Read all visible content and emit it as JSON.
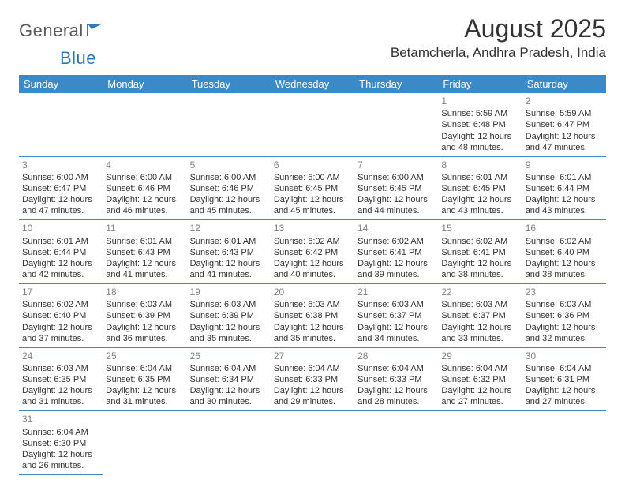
{
  "brand": {
    "part1": "General",
    "part2": "Blue"
  },
  "header": {
    "title": "August 2025",
    "location": "Betamcherla, Andhra Pradesh, India"
  },
  "style": {
    "header_bg": "#3b89c7",
    "header_text": "#ffffff",
    "cell_border": "#3b89c7",
    "daynum_color": "#808080",
    "body_text": "#333333",
    "logo_gray": "#5a5a5a",
    "logo_blue": "#2f79b9",
    "background": "#ffffff"
  },
  "weekdays": [
    "Sunday",
    "Monday",
    "Tuesday",
    "Wednesday",
    "Thursday",
    "Friday",
    "Saturday"
  ],
  "weeks": [
    [
      null,
      null,
      null,
      null,
      null,
      {
        "n": "1",
        "sr": "Sunrise: 5:59 AM",
        "ss": "Sunset: 6:48 PM",
        "d1": "Daylight: 12 hours",
        "d2": "and 48 minutes."
      },
      {
        "n": "2",
        "sr": "Sunrise: 5:59 AM",
        "ss": "Sunset: 6:47 PM",
        "d1": "Daylight: 12 hours",
        "d2": "and 47 minutes."
      }
    ],
    [
      {
        "n": "3",
        "sr": "Sunrise: 6:00 AM",
        "ss": "Sunset: 6:47 PM",
        "d1": "Daylight: 12 hours",
        "d2": "and 47 minutes."
      },
      {
        "n": "4",
        "sr": "Sunrise: 6:00 AM",
        "ss": "Sunset: 6:46 PM",
        "d1": "Daylight: 12 hours",
        "d2": "and 46 minutes."
      },
      {
        "n": "5",
        "sr": "Sunrise: 6:00 AM",
        "ss": "Sunset: 6:46 PM",
        "d1": "Daylight: 12 hours",
        "d2": "and 45 minutes."
      },
      {
        "n": "6",
        "sr": "Sunrise: 6:00 AM",
        "ss": "Sunset: 6:45 PM",
        "d1": "Daylight: 12 hours",
        "d2": "and 45 minutes."
      },
      {
        "n": "7",
        "sr": "Sunrise: 6:00 AM",
        "ss": "Sunset: 6:45 PM",
        "d1": "Daylight: 12 hours",
        "d2": "and 44 minutes."
      },
      {
        "n": "8",
        "sr": "Sunrise: 6:01 AM",
        "ss": "Sunset: 6:45 PM",
        "d1": "Daylight: 12 hours",
        "d2": "and 43 minutes."
      },
      {
        "n": "9",
        "sr": "Sunrise: 6:01 AM",
        "ss": "Sunset: 6:44 PM",
        "d1": "Daylight: 12 hours",
        "d2": "and 43 minutes."
      }
    ],
    [
      {
        "n": "10",
        "sr": "Sunrise: 6:01 AM",
        "ss": "Sunset: 6:44 PM",
        "d1": "Daylight: 12 hours",
        "d2": "and 42 minutes."
      },
      {
        "n": "11",
        "sr": "Sunrise: 6:01 AM",
        "ss": "Sunset: 6:43 PM",
        "d1": "Daylight: 12 hours",
        "d2": "and 41 minutes."
      },
      {
        "n": "12",
        "sr": "Sunrise: 6:01 AM",
        "ss": "Sunset: 6:43 PM",
        "d1": "Daylight: 12 hours",
        "d2": "and 41 minutes."
      },
      {
        "n": "13",
        "sr": "Sunrise: 6:02 AM",
        "ss": "Sunset: 6:42 PM",
        "d1": "Daylight: 12 hours",
        "d2": "and 40 minutes."
      },
      {
        "n": "14",
        "sr": "Sunrise: 6:02 AM",
        "ss": "Sunset: 6:41 PM",
        "d1": "Daylight: 12 hours",
        "d2": "and 39 minutes."
      },
      {
        "n": "15",
        "sr": "Sunrise: 6:02 AM",
        "ss": "Sunset: 6:41 PM",
        "d1": "Daylight: 12 hours",
        "d2": "and 38 minutes."
      },
      {
        "n": "16",
        "sr": "Sunrise: 6:02 AM",
        "ss": "Sunset: 6:40 PM",
        "d1": "Daylight: 12 hours",
        "d2": "and 38 minutes."
      }
    ],
    [
      {
        "n": "17",
        "sr": "Sunrise: 6:02 AM",
        "ss": "Sunset: 6:40 PM",
        "d1": "Daylight: 12 hours",
        "d2": "and 37 minutes."
      },
      {
        "n": "18",
        "sr": "Sunrise: 6:03 AM",
        "ss": "Sunset: 6:39 PM",
        "d1": "Daylight: 12 hours",
        "d2": "and 36 minutes."
      },
      {
        "n": "19",
        "sr": "Sunrise: 6:03 AM",
        "ss": "Sunset: 6:39 PM",
        "d1": "Daylight: 12 hours",
        "d2": "and 35 minutes."
      },
      {
        "n": "20",
        "sr": "Sunrise: 6:03 AM",
        "ss": "Sunset: 6:38 PM",
        "d1": "Daylight: 12 hours",
        "d2": "and 35 minutes."
      },
      {
        "n": "21",
        "sr": "Sunrise: 6:03 AM",
        "ss": "Sunset: 6:37 PM",
        "d1": "Daylight: 12 hours",
        "d2": "and 34 minutes."
      },
      {
        "n": "22",
        "sr": "Sunrise: 6:03 AM",
        "ss": "Sunset: 6:37 PM",
        "d1": "Daylight: 12 hours",
        "d2": "and 33 minutes."
      },
      {
        "n": "23",
        "sr": "Sunrise: 6:03 AM",
        "ss": "Sunset: 6:36 PM",
        "d1": "Daylight: 12 hours",
        "d2": "and 32 minutes."
      }
    ],
    [
      {
        "n": "24",
        "sr": "Sunrise: 6:03 AM",
        "ss": "Sunset: 6:35 PM",
        "d1": "Daylight: 12 hours",
        "d2": "and 31 minutes."
      },
      {
        "n": "25",
        "sr": "Sunrise: 6:04 AM",
        "ss": "Sunset: 6:35 PM",
        "d1": "Daylight: 12 hours",
        "d2": "and 31 minutes."
      },
      {
        "n": "26",
        "sr": "Sunrise: 6:04 AM",
        "ss": "Sunset: 6:34 PM",
        "d1": "Daylight: 12 hours",
        "d2": "and 30 minutes."
      },
      {
        "n": "27",
        "sr": "Sunrise: 6:04 AM",
        "ss": "Sunset: 6:33 PM",
        "d1": "Daylight: 12 hours",
        "d2": "and 29 minutes."
      },
      {
        "n": "28",
        "sr": "Sunrise: 6:04 AM",
        "ss": "Sunset: 6:33 PM",
        "d1": "Daylight: 12 hours",
        "d2": "and 28 minutes."
      },
      {
        "n": "29",
        "sr": "Sunrise: 6:04 AM",
        "ss": "Sunset: 6:32 PM",
        "d1": "Daylight: 12 hours",
        "d2": "and 27 minutes."
      },
      {
        "n": "30",
        "sr": "Sunrise: 6:04 AM",
        "ss": "Sunset: 6:31 PM",
        "d1": "Daylight: 12 hours",
        "d2": "and 27 minutes."
      }
    ],
    [
      {
        "n": "31",
        "sr": "Sunrise: 6:04 AM",
        "ss": "Sunset: 6:30 PM",
        "d1": "Daylight: 12 hours",
        "d2": "and 26 minutes."
      },
      null,
      null,
      null,
      null,
      null,
      null
    ]
  ]
}
